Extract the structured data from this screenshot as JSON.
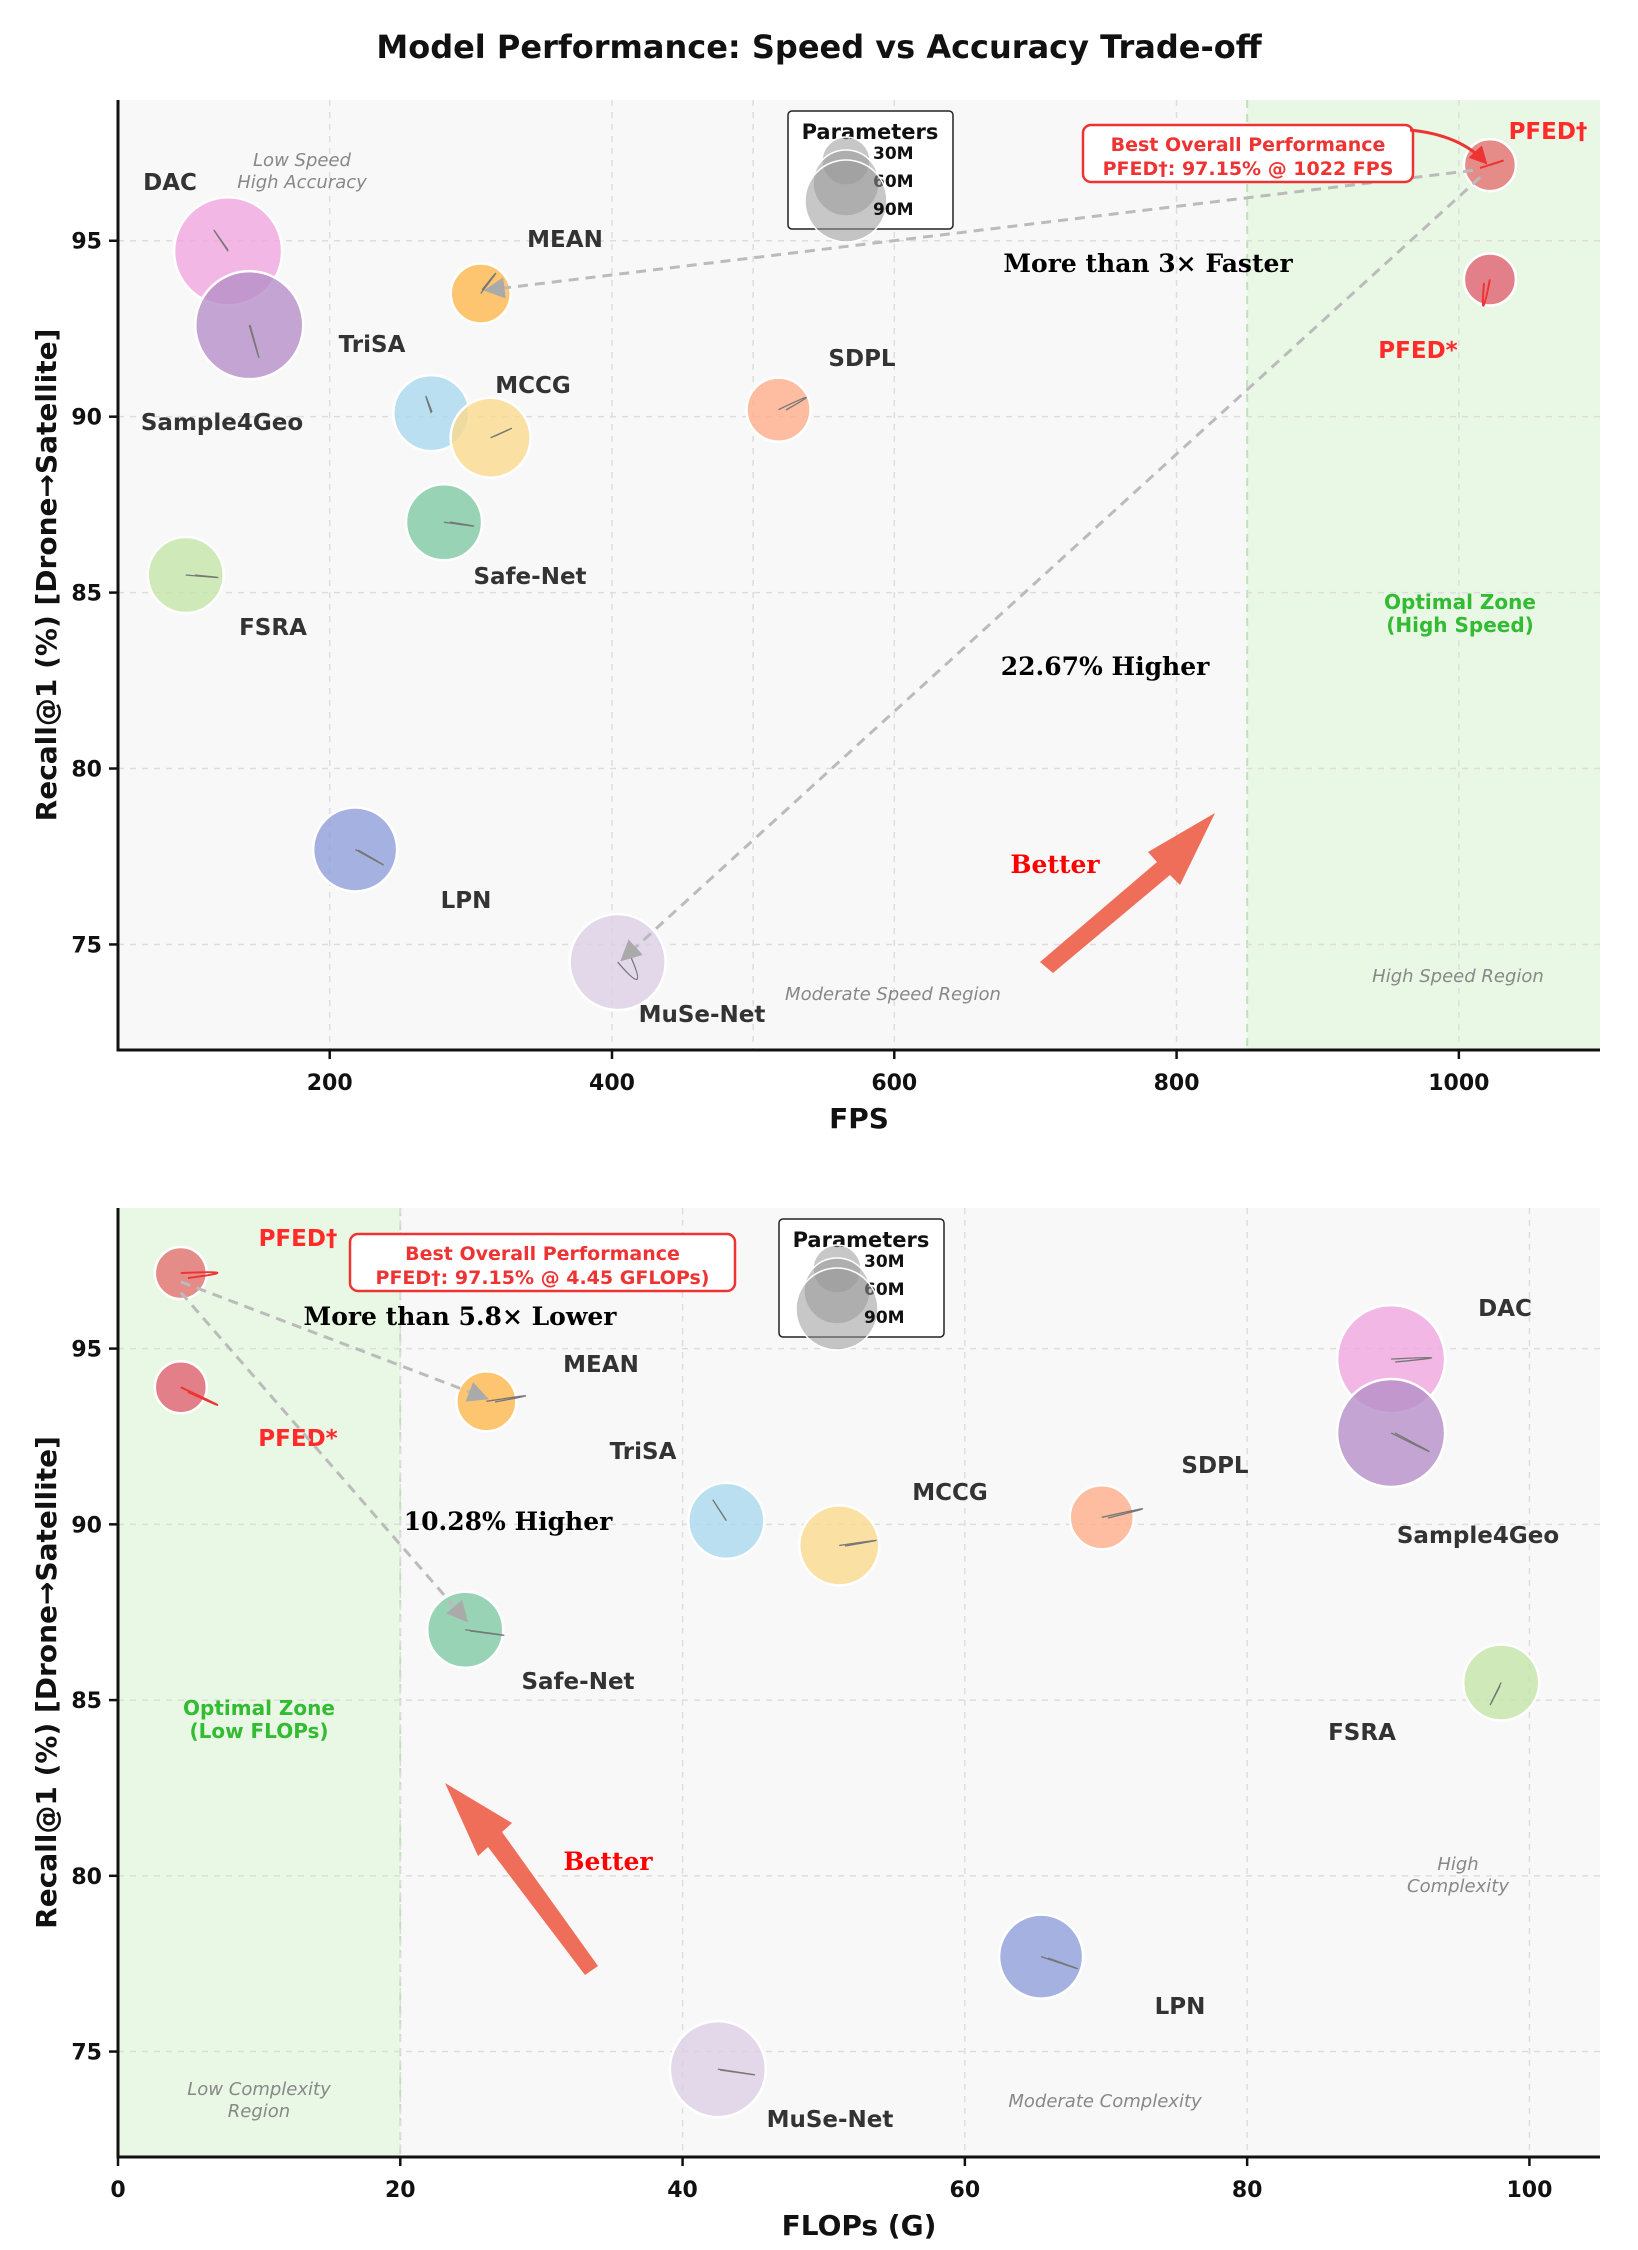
{
  "title": "Model Performance: Speed vs Accuracy Trade-off",
  "legend": {
    "title": "Parameters",
    "entries": [
      "30M",
      "60M",
      "90M"
    ]
  },
  "chart_data": [
    {
      "type": "scatter",
      "xlabel": "FPS",
      "ylabel": "Recall@1 (%) [Drone→Satellite]",
      "xlim": [
        50,
        1100
      ],
      "ylim": [
        72,
        99
      ],
      "xticks": [
        200,
        400,
        600,
        800,
        1000
      ],
      "yticks": [
        75,
        80,
        85,
        90,
        95
      ],
      "points": [
        {
          "name": "DAC",
          "x": 128,
          "y": 94.7,
          "color": "#f0a6e0",
          "params": "90M"
        },
        {
          "name": "Sample4Geo",
          "x": 143,
          "y": 92.6,
          "color": "#b58fc8",
          "params": "90M"
        },
        {
          "name": "MEAN",
          "x": 307,
          "y": 93.5,
          "color": "#ffb84d",
          "params": "30M"
        },
        {
          "name": "TriSA",
          "x": 272,
          "y": 90.1,
          "color": "#a9d8ee",
          "params": "45M"
        },
        {
          "name": "MCCG",
          "x": 314,
          "y": 89.4,
          "color": "#fbd98e",
          "params": "50M"
        },
        {
          "name": "SDPL",
          "x": 518,
          "y": 90.2,
          "color": "#ffac8a",
          "params": "40M"
        },
        {
          "name": "Safe-Net",
          "x": 281,
          "y": 87.0,
          "color": "#7ec9a3",
          "params": "45M"
        },
        {
          "name": "FSRA",
          "x": 98,
          "y": 85.5,
          "color": "#c4e6a7",
          "params": "45M"
        },
        {
          "name": "LPN",
          "x": 218,
          "y": 77.7,
          "color": "#8f9fdb",
          "params": "55M"
        },
        {
          "name": "MuSe-Net",
          "x": 404,
          "y": 74.5,
          "color": "#dcd0e6",
          "params": "75M"
        },
        {
          "name": "PFED†",
          "x": 1022,
          "y": 97.15,
          "color": "#e47070",
          "params": "20M"
        },
        {
          "name": "PFED*",
          "x": 1022,
          "y": 93.9,
          "color": "#e06070",
          "params": "20M"
        }
      ],
      "regions": [
        "Low Speed\nHigh Accuracy",
        "Moderate Speed Region",
        "High Speed Region"
      ],
      "optimal_zone": {
        "label": "Optimal Zone\n(High Speed)",
        "from": 850
      },
      "annotations": {
        "best": "Best Overall Performance\nPFED†: 97.15% @ 1022 FPS",
        "faster": "More than 3× Faster",
        "higher": "22.67% Higher",
        "better": "Better"
      }
    },
    {
      "type": "scatter",
      "xlabel": "FLOPs (G)",
      "ylabel": "Recall@1 (%) [Drone→Satellite]",
      "xlim": [
        0,
        105
      ],
      "ylim": [
        72,
        99
      ],
      "xticks": [
        0,
        20,
        40,
        60,
        80,
        100
      ],
      "yticks": [
        75,
        80,
        85,
        90,
        95
      ],
      "points": [
        {
          "name": "PFED†",
          "x": 4.45,
          "y": 97.15,
          "color": "#e47070",
          "params": "20M"
        },
        {
          "name": "PFED*",
          "x": 4.45,
          "y": 93.9,
          "color": "#e06070",
          "params": "20M"
        },
        {
          "name": "MEAN",
          "x": 26.1,
          "y": 93.5,
          "color": "#ffb84d",
          "params": "30M"
        },
        {
          "name": "TriSA",
          "x": 43.1,
          "y": 90.1,
          "color": "#a9d8ee",
          "params": "45M"
        },
        {
          "name": "MCCG",
          "x": 51.1,
          "y": 89.4,
          "color": "#fbd98e",
          "params": "50M"
        },
        {
          "name": "SDPL",
          "x": 69.7,
          "y": 90.2,
          "color": "#ffac8a",
          "params": "40M"
        },
        {
          "name": "Safe-Net",
          "x": 24.6,
          "y": 87.0,
          "color": "#7ec9a3",
          "params": "45M"
        },
        {
          "name": "DAC",
          "x": 90.2,
          "y": 94.7,
          "color": "#f0a6e0",
          "params": "90M"
        },
        {
          "name": "Sample4Geo",
          "x": 90.2,
          "y": 92.6,
          "color": "#b58fc8",
          "params": "90M"
        },
        {
          "name": "FSRA",
          "x": 98.0,
          "y": 85.5,
          "color": "#c4e6a7",
          "params": "45M"
        },
        {
          "name": "LPN",
          "x": 65.4,
          "y": 77.7,
          "color": "#8f9fdb",
          "params": "55M"
        },
        {
          "name": "MuSe-Net",
          "x": 42.5,
          "y": 74.5,
          "color": "#dcd0e6",
          "params": "75M"
        }
      ],
      "regions": [
        "Low Complexity\nRegion",
        "Moderate Complexity",
        "High\nComplexity"
      ],
      "optimal_zone": {
        "label": "Optimal Zone\n(Low FLOPs)",
        "to": 20
      },
      "annotations": {
        "best": "Best Overall Performance\nPFED†: 97.15% @ 4.45 GFLOPs)",
        "lower": "More than 5.8× Lower",
        "higher": "10.28% Higher",
        "better": "Better"
      }
    }
  ]
}
